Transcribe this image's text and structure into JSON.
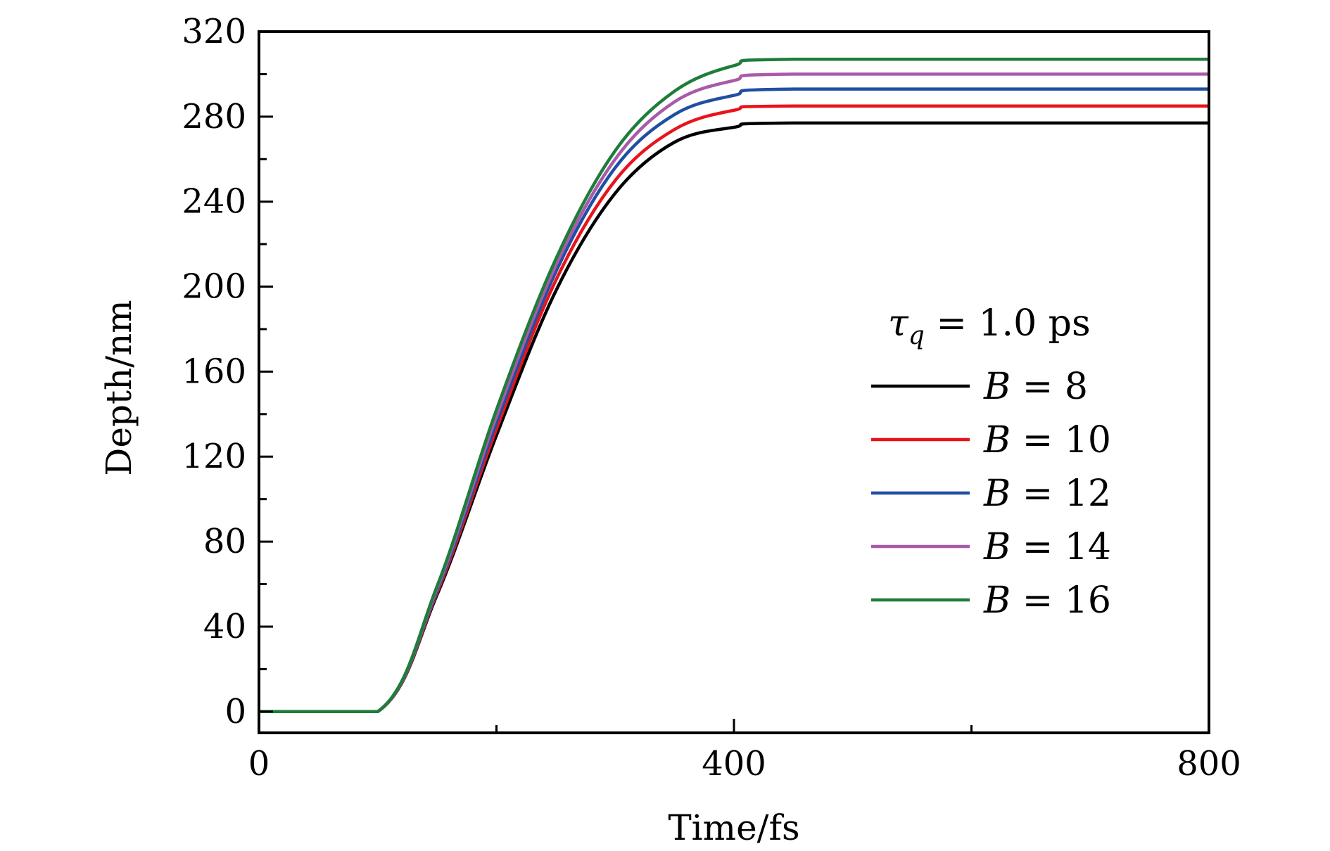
{
  "chart_data": {
    "type": "line",
    "xlabel": "Time/fs",
    "ylabel": "Depth/nm",
    "xlim": [
      0,
      800
    ],
    "ylim": [
      -10,
      320
    ],
    "xticks": [
      0,
      400,
      800
    ],
    "xtick_labels": [
      "0",
      "400",
      "800"
    ],
    "x_minor_ticks": [
      200,
      600
    ],
    "yticks": [
      0,
      40,
      80,
      120,
      160,
      200,
      240,
      280,
      320
    ],
    "ytick_labels": [
      "0",
      "40",
      "80",
      "120",
      "160",
      "200",
      "240",
      "280",
      "320"
    ],
    "y_minor_ticks": [
      20,
      60,
      100,
      140,
      180,
      220,
      260,
      300
    ],
    "grid": false,
    "legend_position": "right",
    "legend_title": {
      "symbol": "τ",
      "subscript": "q",
      "text": " = 1.0 ps"
    },
    "series": [
      {
        "name": "B = 8",
        "var": "B",
        "eq": " = 8",
        "color": "#000000",
        "x": [
          0,
          100,
          150,
          200,
          250,
          300,
          350,
          400,
          450,
          800
        ],
        "y": [
          0,
          0,
          55,
          130,
          198,
          244,
          268,
          275,
          277,
          277
        ]
      },
      {
        "name": "B = 10",
        "var": "B",
        "eq": " = 10",
        "color": "#e8131b",
        "x": [
          0,
          100,
          150,
          200,
          250,
          300,
          350,
          400,
          450,
          800
        ],
        "y": [
          0,
          0,
          56,
          133,
          203,
          250,
          274,
          283,
          285,
          285
        ]
      },
      {
        "name": "B = 12",
        "var": "B",
        "eq": " = 12",
        "color": "#1f4fa3",
        "x": [
          0,
          100,
          150,
          200,
          250,
          300,
          350,
          400,
          450,
          800
        ],
        "y": [
          0,
          0,
          57,
          136,
          207,
          256,
          281,
          290,
          293,
          293
        ]
      },
      {
        "name": "B = 14",
        "var": "B",
        "eq": " = 14",
        "color": "#a85ba8",
        "x": [
          0,
          100,
          150,
          200,
          250,
          300,
          350,
          400,
          450,
          800
        ],
        "y": [
          0,
          0,
          58,
          139,
          210,
          260,
          287,
          297,
          300,
          300
        ]
      },
      {
        "name": "B = 16",
        "var": "B",
        "eq": " = 16",
        "color": "#1e7d3a",
        "x": [
          0,
          100,
          150,
          200,
          250,
          300,
          350,
          400,
          450,
          800
        ],
        "y": [
          0,
          0,
          59,
          142,
          213,
          264,
          292,
          304,
          307,
          307
        ]
      }
    ]
  }
}
